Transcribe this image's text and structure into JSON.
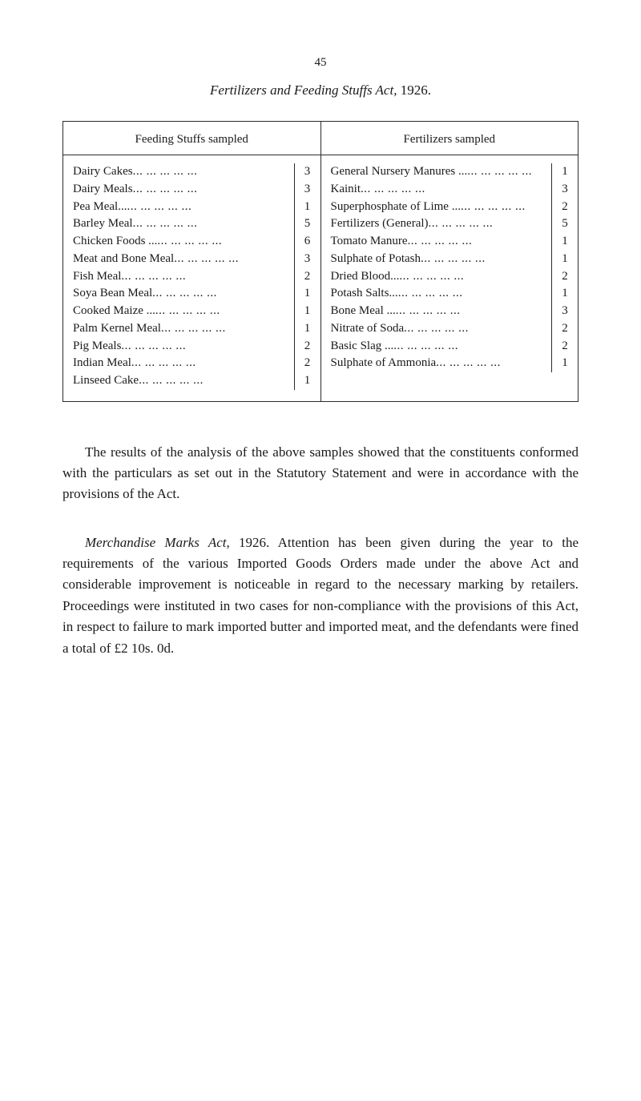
{
  "page_number": "45",
  "title_italic": "Fertilizers and Feeding Stuffs Act,",
  "title_year": "1926.",
  "left_header": "Feeding Stuffs sampled",
  "right_header": "Fertilizers sampled",
  "left_items": [
    {
      "label": "Dairy Cakes",
      "value": "3"
    },
    {
      "label": "Dairy Meals",
      "value": "3"
    },
    {
      "label": "Pea Meal...",
      "value": "1"
    },
    {
      "label": "Barley Meal",
      "value": "5"
    },
    {
      "label": "Chicken Foods ...",
      "value": "6"
    },
    {
      "label": "Meat and Bone Meal",
      "value": "3"
    },
    {
      "label": "Fish Meal",
      "value": "2"
    },
    {
      "label": "Soya Bean Meal",
      "value": "1"
    },
    {
      "label": "Cooked Maize   ...",
      "value": "1"
    },
    {
      "label": "Palm Kernel Meal",
      "value": "1"
    },
    {
      "label": "Pig Meals",
      "value": "2"
    },
    {
      "label": "Indian Meal",
      "value": "2"
    },
    {
      "label": "Linseed Cake",
      "value": "1"
    }
  ],
  "right_items": [
    {
      "label": "General Nursery Manures ...",
      "value": "1"
    },
    {
      "label": "Kainit",
      "value": "3"
    },
    {
      "label": "Superphosphate of Lime   ...",
      "value": "2"
    },
    {
      "label": "Fertilizers (General)",
      "value": "5"
    },
    {
      "label": "Tomato Manure",
      "value": "1"
    },
    {
      "label": "Sulphate of Potash",
      "value": "1"
    },
    {
      "label": "Dried Blood...",
      "value": "2"
    },
    {
      "label": "Potash Salts...",
      "value": "1"
    },
    {
      "label": "Bone Meal ...",
      "value": "3"
    },
    {
      "label": "Nitrate of Soda",
      "value": "2"
    },
    {
      "label": "Basic Slag ...",
      "value": "2"
    },
    {
      "label": "Sulphate of Ammonia",
      "value": "1"
    }
  ],
  "para1": "The results of the analysis of the above samples showed that the constituents conformed with the particulars as set out in the Statutory Statement and were in accordance with the provisions of the Act.",
  "para2_lead_italic": "Merchandise Marks Act,",
  "para2_lead_year": "1926.",
  "para2_rest": "Attention has been given during the year to the requirements of the various Imported Goods Orders made under the above Act and considerable improvement is noticeable in regard to the necessary marking by retailers. Proceedings were instituted in two cases for non-compliance with the provisions of this Act, in respect to failure to mark imported butter and imported meat, and the defendants were fined a total of £2 10s. 0d."
}
